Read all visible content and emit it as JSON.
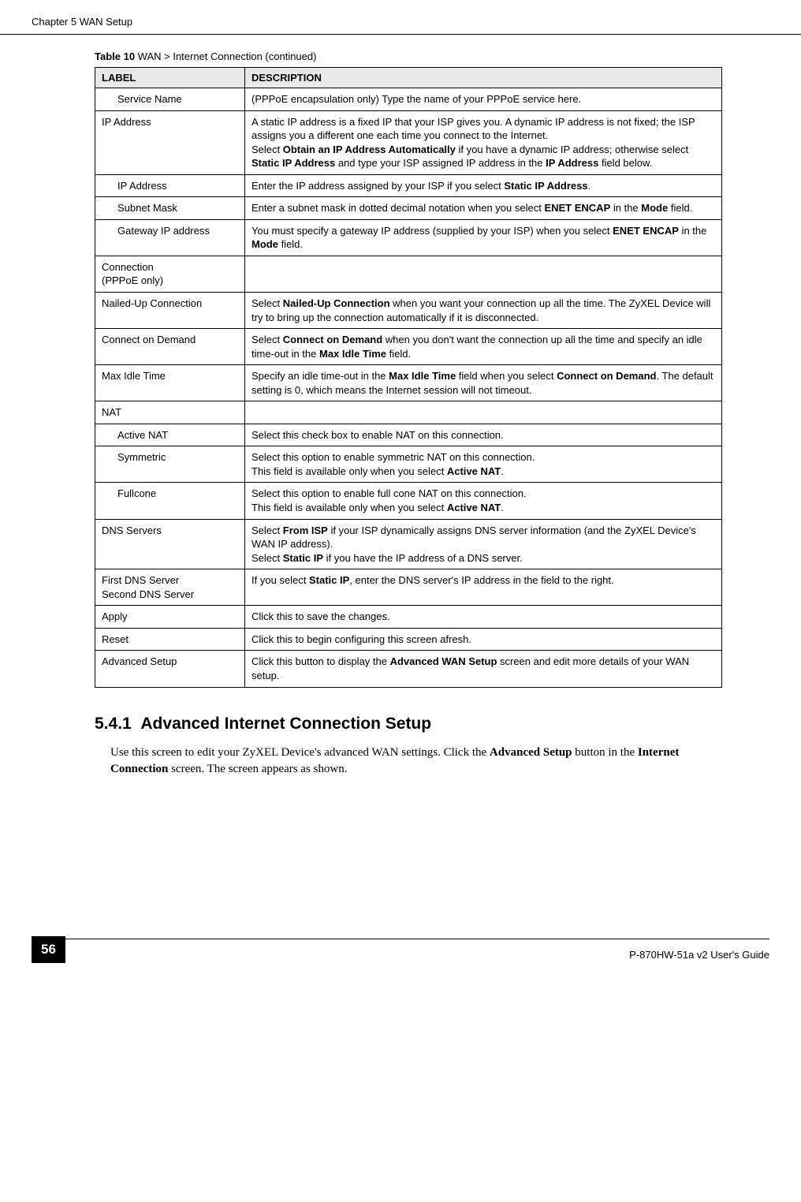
{
  "header": {
    "chapter": "Chapter 5 WAN Setup"
  },
  "tableTitle": {
    "prefix": "Table 10",
    "suffix": "   WAN > Internet Connection (continued)"
  },
  "tableHeaders": {
    "label": "LABEL",
    "description": "DESCRIPTION"
  },
  "rows": [
    {
      "label": "Service Name",
      "indent": true,
      "desc": "(PPPoE encapsulation only) Type the name of your PPPoE service here."
    },
    {
      "label": "IP Address",
      "indent": false,
      "desc": "A static IP address is a fixed IP that your ISP gives you. A dynamic IP address is not fixed; the ISP assigns you a different one each time you connect to the Internet.\nSelect <b>Obtain an IP Address Automatically</b> if you have a dynamic IP address; otherwise select <b>Static IP Address</b> and type your ISP assigned IP address in the <b>IP Address</b> field below."
    },
    {
      "label": "IP Address",
      "indent": true,
      "desc": "Enter the IP address assigned by your ISP if you select <b>Static IP Address</b>."
    },
    {
      "label": "Subnet Mask",
      "indent": true,
      "desc": "Enter a subnet mask in dotted decimal notation when you select <b>ENET ENCAP</b> in the <b>Mode</b> field."
    },
    {
      "label": "Gateway IP address",
      "indent": true,
      "desc": "You must specify a gateway IP address (supplied by your ISP) when you select <b>ENET ENCAP</b> in the <b>Mode</b> field."
    },
    {
      "label": "Connection\n(PPPoE only)",
      "indent": false,
      "desc": ""
    },
    {
      "label": "Nailed-Up Connection",
      "indent": false,
      "desc": "Select <b>Nailed-Up Connection</b> when you want your connection up all the time. The ZyXEL Device will try to bring up the connection automatically if it is disconnected."
    },
    {
      "label": "Connect on Demand",
      "indent": false,
      "desc": "Select <b>Connect on Demand</b> when you don't want the connection up all the time and specify an idle time-out in the <b>Max Idle Time</b> field."
    },
    {
      "label": "Max Idle Time",
      "indent": false,
      "desc": "Specify an idle time-out in the <b>Max Idle Time</b> field when you select <b>Connect on Demand</b>. The default setting is 0, which means the Internet session will not timeout."
    },
    {
      "label": "NAT",
      "indent": false,
      "desc": ""
    },
    {
      "label": "Active NAT",
      "indent": true,
      "desc": "Select this check box to enable NAT on this connection."
    },
    {
      "label": "Symmetric",
      "indent": true,
      "desc": "Select this option to enable symmetric NAT on this connection.\nThis field is available only when you select <b>Active NAT</b>."
    },
    {
      "label": "Fullcone",
      "indent": true,
      "desc": "Select this option to enable full cone NAT on this connection.\nThis field is available only when you select <b>Active NAT</b>."
    },
    {
      "label": "DNS Servers",
      "indent": false,
      "desc": "Select <b>From ISP</b> if your ISP dynamically assigns DNS server information (and the ZyXEL Device's WAN IP address).\nSelect <b>Static IP</b> if you have the IP address of a DNS server."
    },
    {
      "label": "First DNS Server\nSecond DNS Server",
      "indent": false,
      "desc": "If you select <b>Static IP</b>, enter the DNS server's IP address in the field to the right."
    },
    {
      "label": "Apply",
      "indent": false,
      "desc": "Click this to save the changes."
    },
    {
      "label": "Reset",
      "indent": false,
      "desc": "Click this to begin configuring this screen afresh."
    },
    {
      "label": "Advanced Setup",
      "indent": false,
      "desc": "Click this button to display the <b>Advanced WAN Setup</b> screen and edit more details of your WAN setup."
    }
  ],
  "section": {
    "number": "5.4.1",
    "title": "Advanced Internet Connection Setup",
    "body": "Use this screen to edit your ZyXEL Device's advanced WAN settings. Click the <b>Advanced Setup</b> button in the <b>Internet Connection</b> screen. The screen appears as shown."
  },
  "footer": {
    "pageNumber": "56",
    "guide": "P-870HW-51a v2 User's Guide"
  }
}
